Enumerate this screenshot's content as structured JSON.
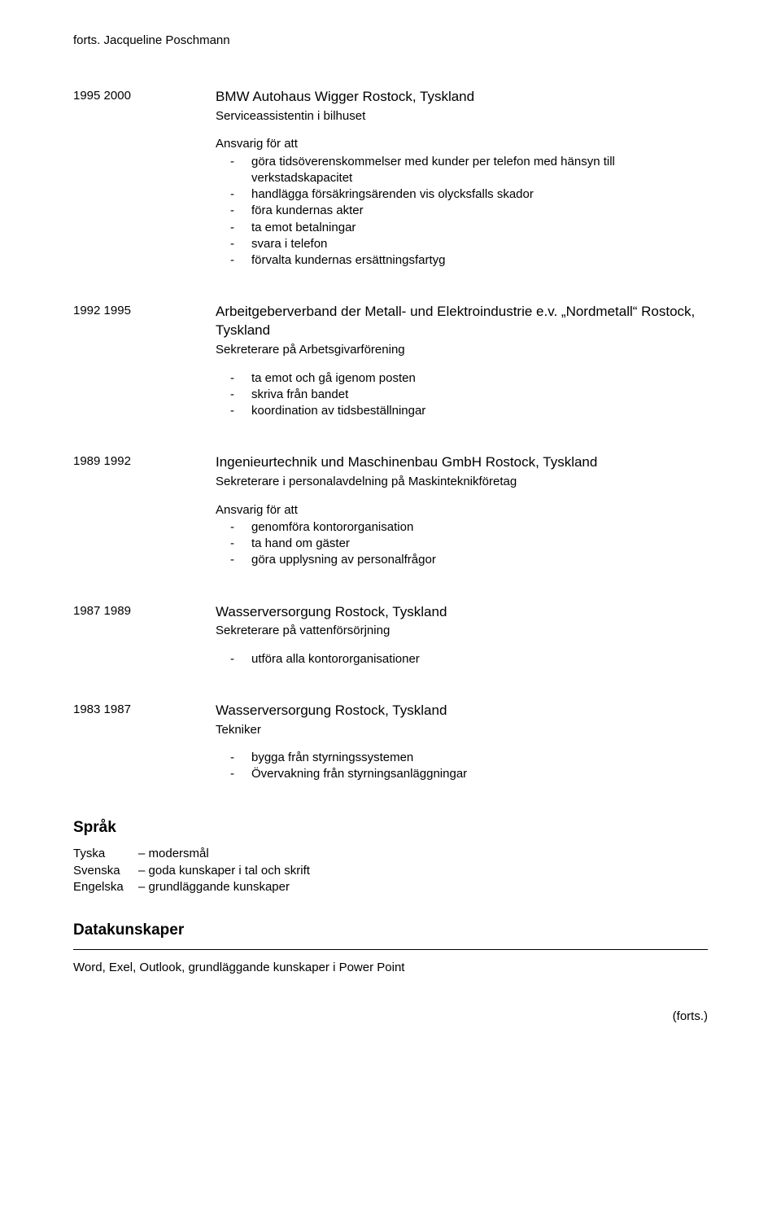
{
  "header_cont": "forts. Jacqueline Poschmann",
  "entries": [
    {
      "date": "1995  2000",
      "title": "BMW Autohaus Wigger Rostock, Tyskland",
      "subtitle": "Serviceassistentin i bilhuset",
      "resp_heading": "Ansvarig för att",
      "bullets": [
        "göra tidsöverenskommelser med kunder per telefon med hänsyn till verkstadskapacitet",
        "handlägga försäkringsärenden vis olycksfalls skador",
        "föra kundernas akter",
        "ta emot betalningar",
        "svara i telefon",
        "förvalta kundernas ersättningsfartyg"
      ]
    },
    {
      "date": "1992  1995",
      "title": "Arbeitgeberverband der Metall- und Elektroindustrie e.v. „Nordmetall“ Rostock, Tyskland",
      "subtitle": "Sekreterare på Arbetsgivarförening",
      "bullets": [
        "ta emot och gå igenom posten",
        "skriva från bandet",
        "koordination av tidsbeställningar"
      ]
    },
    {
      "date": "1989  1992",
      "title": "Ingenieurtechnik und Maschinenbau GmbH Rostock, Tyskland",
      "subtitle": "Sekreterare i personalavdelning på Maskinteknikföretag",
      "resp_heading": "Ansvarig för att",
      "bullets": [
        "genomföra kontororganisation",
        "ta hand om gäster",
        "göra upplysning av personalfrågor"
      ]
    },
    {
      "date": "1987  1989",
      "title": "Wasserversorgung Rostock, Tyskland",
      "subtitle": "Sekreterare på vattenförsörjning",
      "bullets": [
        "utföra alla kontororganisationer"
      ]
    },
    {
      "date": "1983  1987",
      "title": "Wasserversorgung Rostock, Tyskland",
      "subtitle": "Tekniker",
      "bullets": [
        "bygga från styrningssystemen",
        "Övervakning från styrningsanläggningar"
      ]
    }
  ],
  "sections": {
    "sprak": {
      "heading": "Språk",
      "rows": [
        {
          "key": "Tyska",
          "val": "– modersmål"
        },
        {
          "key": "Svenska",
          "val": "– goda kunskaper i tal och skrift"
        },
        {
          "key": "Engelska",
          "val": "– grundläggande kunskaper"
        }
      ]
    },
    "data": {
      "heading": "Datakunskaper",
      "text": "Word, Exel, Outlook, grundläggande kunskaper i Power Point"
    }
  },
  "footer_cont": "(forts.)"
}
